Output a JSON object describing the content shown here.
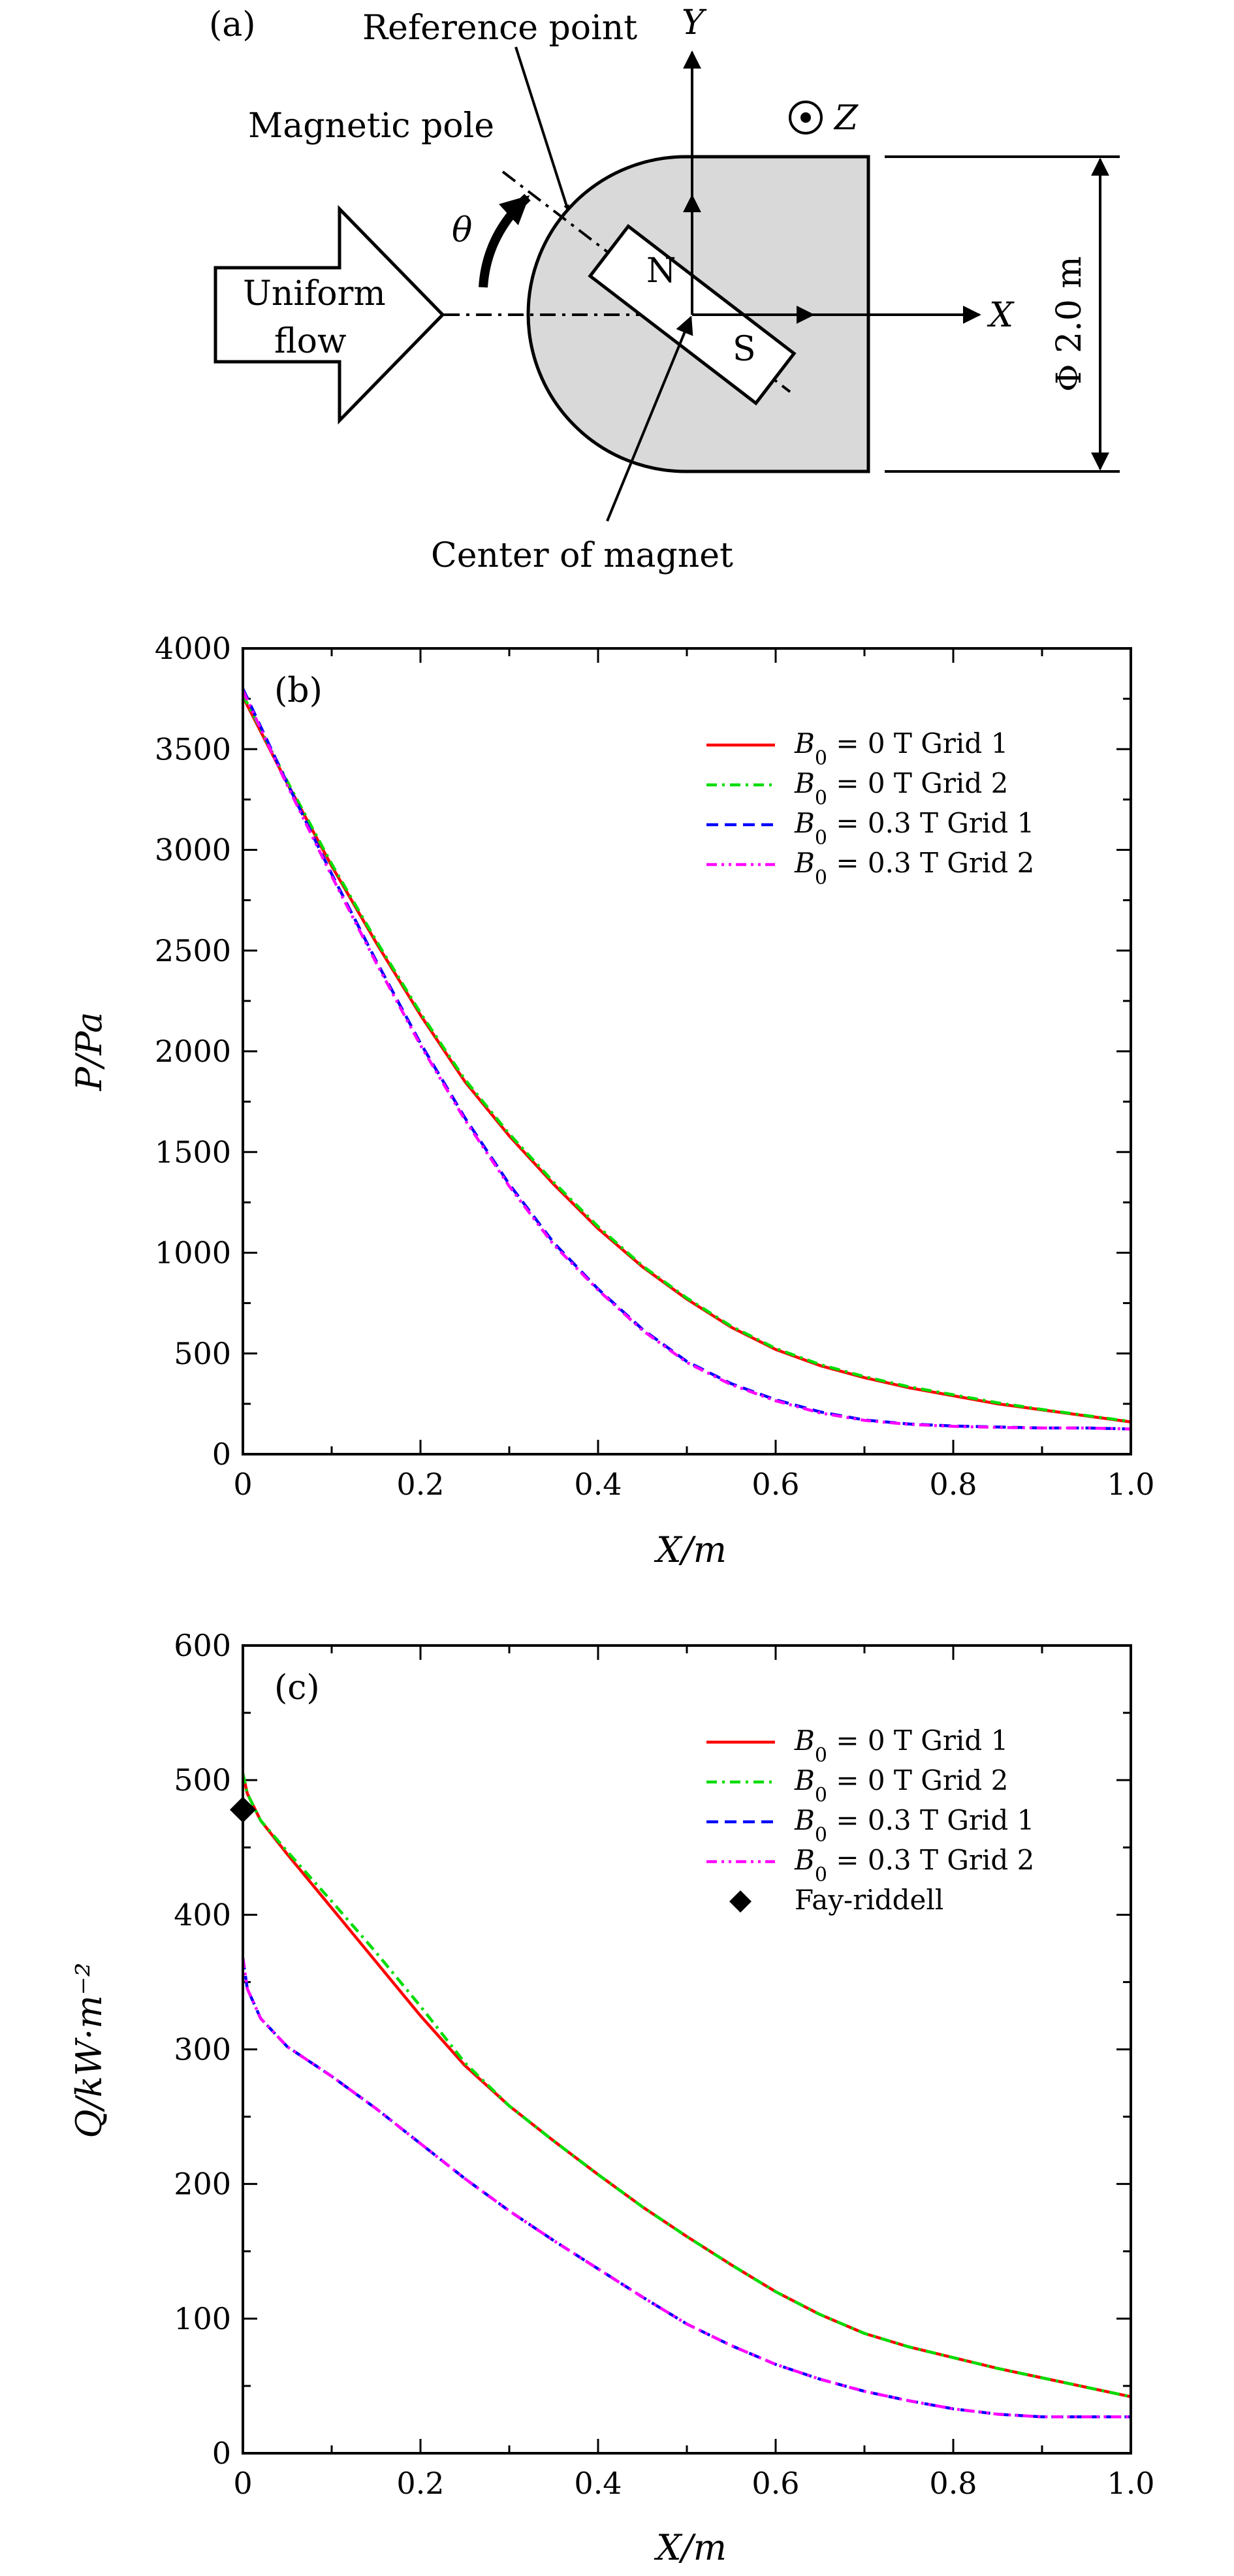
{
  "panel_a": {
    "label": "(a)",
    "labels": {
      "reference_point": "Reference point",
      "magnetic_pole": "Magnetic pole",
      "theta": "θ",
      "uniform": "Uniform",
      "flow": "flow",
      "y_axis": "Y",
      "z_axis": "Z",
      "x_axis": "X",
      "north": "N",
      "south": "S",
      "center_of_magnet": "Center of magnet",
      "diameter": "Φ 2.0 m"
    },
    "colors": {
      "body_fill": "#d9d9d9"
    }
  },
  "chart_data": [
    {
      "type": "line",
      "panel_label": "(b)",
      "xlabel": "X/m",
      "ylabel": "P/Pa",
      "xlim": [
        0,
        1.0
      ],
      "ylim": [
        0,
        4000
      ],
      "x_ticks": [
        "0",
        "0.2",
        "0.4",
        "0.6",
        "0.8",
        "1.0"
      ],
      "y_ticks": [
        "0",
        "500",
        "1000",
        "1500",
        "2000",
        "2500",
        "3000",
        "3500",
        "4000"
      ],
      "legend_position": "top-right",
      "x": [
        0,
        0.05,
        0.1,
        0.15,
        0.2,
        0.25,
        0.3,
        0.35,
        0.4,
        0.45,
        0.5,
        0.55,
        0.6,
        0.65,
        0.7,
        0.75,
        0.8,
        0.85,
        0.9,
        0.95,
        1.0
      ],
      "series": [
        {
          "name": "B0 = 0 T Grid 1",
          "legend_main": "B",
          "legend_sub": "0",
          "legend_rest": " = 0 T Grid 1",
          "color": "#ff0000",
          "dash": "",
          "values": [
            3760,
            3330,
            2920,
            2540,
            2180,
            1850,
            1580,
            1340,
            1120,
            930,
            770,
            630,
            520,
            440,
            380,
            330,
            290,
            250,
            220,
            190,
            160
          ]
        },
        {
          "name": "B0 = 0 T Grid 2",
          "legend_main": "B",
          "legend_sub": "0",
          "legend_rest": " = 0 T Grid 2",
          "color": "#00dd00",
          "dash": "16 8 4 8",
          "values": [
            3770,
            3340,
            2930,
            2550,
            2190,
            1860,
            1590,
            1350,
            1130,
            935,
            775,
            635,
            525,
            445,
            385,
            335,
            295,
            255,
            222,
            192,
            162
          ]
        },
        {
          "name": "B0 = 0.3 T Grid 1",
          "legend_main": "B",
          "legend_sub": "0",
          "legend_rest": " = 0.3 T Grid 1",
          "color": "#0000ff",
          "dash": "18 10",
          "values": [
            3800,
            3330,
            2880,
            2450,
            2040,
            1670,
            1340,
            1050,
            820,
            620,
            460,
            350,
            270,
            210,
            170,
            150,
            140,
            135,
            130,
            130,
            125
          ]
        },
        {
          "name": "B0 = 0.3 T Grid 2",
          "legend_main": "B",
          "legend_sub": "0",
          "legend_rest": " = 0.3 T Grid 2",
          "color": "#ff00ff",
          "dash": "16 7 4 7 4 7",
          "values": [
            3790,
            3320,
            2870,
            2440,
            2030,
            1660,
            1330,
            1040,
            815,
            615,
            455,
            345,
            265,
            205,
            168,
            148,
            138,
            133,
            130,
            130,
            125
          ]
        }
      ]
    },
    {
      "type": "line",
      "panel_label": "(c)",
      "xlabel": "X/m",
      "ylabel": "Q/kW·m⁻²",
      "xlim": [
        0,
        1.0
      ],
      "ylim": [
        0,
        600
      ],
      "x_ticks": [
        "0",
        "0.2",
        "0.4",
        "0.6",
        "0.8",
        "1.0"
      ],
      "y_ticks": [
        "0",
        "100",
        "200",
        "300",
        "400",
        "500",
        "600"
      ],
      "legend_position": "top-right",
      "x": [
        0,
        0.005,
        0.02,
        0.05,
        0.1,
        0.15,
        0.2,
        0.25,
        0.3,
        0.35,
        0.4,
        0.45,
        0.5,
        0.55,
        0.6,
        0.65,
        0.7,
        0.75,
        0.8,
        0.85,
        0.9,
        0.95,
        1.0
      ],
      "series": [
        {
          "name": "B0 = 0 T Grid 1",
          "legend_main": "B",
          "legend_sub": "0",
          "legend_rest": " = 0 T Grid 1",
          "color": "#ff0000",
          "dash": "",
          "values": [
            505,
            490,
            470,
            445,
            405,
            365,
            325,
            288,
            258,
            232,
            207,
            183,
            161,
            140,
            120,
            103,
            89,
            79,
            71,
            63,
            56,
            49,
            42
          ]
        },
        {
          "name": "B0 = 0 T Grid 2",
          "legend_main": "B",
          "legend_sub": "0",
          "legend_rest": " = 0 T Grid 2",
          "color": "#00dd00",
          "dash": "16 8 4 8",
          "values": [
            505,
            490,
            470,
            447,
            410,
            372,
            332,
            290,
            258,
            232,
            207,
            183,
            161,
            140,
            120,
            103,
            89,
            79,
            71,
            63,
            56,
            49,
            42
          ]
        },
        {
          "name": "B0 = 0.3 T Grid 1",
          "legend_main": "B",
          "legend_sub": "0",
          "legend_rest": " = 0.3 T Grid 1",
          "color": "#0000ff",
          "dash": "18 10",
          "values": [
            368,
            345,
            323,
            302,
            280,
            256,
            230,
            204,
            180,
            158,
            137,
            116,
            96,
            80,
            66,
            55,
            46,
            39,
            33,
            29,
            27,
            27,
            27
          ]
        },
        {
          "name": "B0 = 0.3 T Grid 2",
          "legend_main": "B",
          "legend_sub": "0",
          "legend_rest": " = 0.3 T Grid 2",
          "color": "#ff00ff",
          "dash": "16 7 4 7 4 7",
          "values": [
            368,
            345,
            323,
            302,
            280,
            256,
            230,
            204,
            180,
            158,
            137,
            116,
            96,
            80,
            66,
            55,
            46,
            39,
            33,
            29,
            27,
            27,
            27
          ]
        }
      ],
      "markers": [
        {
          "name": "Fay-riddell",
          "x": 0,
          "y": 478,
          "symbol": "diamond",
          "color": "#000000"
        }
      ]
    }
  ]
}
